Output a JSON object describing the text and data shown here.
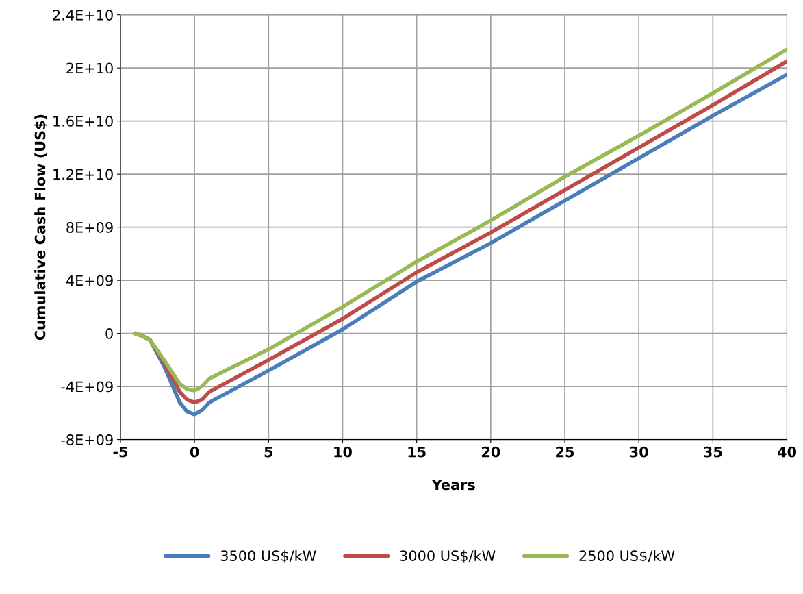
{
  "chart_data": {
    "type": "line",
    "xlabel": "Years",
    "ylabel": "Cumulative Cash Flow (US$)",
    "x": [
      -4,
      -3.5,
      -3,
      -2,
      -1,
      -0.5,
      0,
      0.5,
      1,
      5,
      10,
      15,
      20,
      25,
      30,
      35,
      40
    ],
    "series": [
      {
        "name": "3500 US$/kW",
        "color": "#4a7ebb",
        "values": [
          0,
          -200000000.0,
          -500000000.0,
          -2600000000.0,
          -5200000000.0,
          -5900000000.0,
          -6100000000.0,
          -5800000000.0,
          -5200000000.0,
          -2800000000.0,
          300000000.0,
          3900000000.0,
          6800000000.0,
          10000000000.0,
          13200000000.0,
          16400000000.0,
          19500000000.0
        ]
      },
      {
        "name": "3000 US$/kW",
        "color": "#be4b48",
        "values": [
          0,
          -200000000.0,
          -500000000.0,
          -2300000000.0,
          -4400000000.0,
          -5000000000.0,
          -5200000000.0,
          -5000000000.0,
          -4400000000.0,
          -2000000000.0,
          1100000000.0,
          4600000000.0,
          7600000000.0,
          10800000000.0,
          14000000000.0,
          17200000000.0,
          20500000000.0
        ]
      },
      {
        "name": "2500 US$/kW",
        "color": "#98b954",
        "values": [
          0,
          -200000000.0,
          -500000000.0,
          -2100000000.0,
          -3800000000.0,
          -4200000000.0,
          -4300000000.0,
          -4000000000.0,
          -3400000000.0,
          -1200000000.0,
          2000000000.0,
          5400000000.0,
          8500000000.0,
          11800000000.0,
          14900000000.0,
          18100000000.0,
          21400000000.0
        ]
      }
    ],
    "xlim": [
      -5,
      40
    ],
    "xticks": [
      -5,
      0,
      5,
      10,
      15,
      20,
      25,
      30,
      35,
      40
    ],
    "ylim": [
      -8000000000.0,
      24000000000.0
    ],
    "yticks": [
      {
        "value": -8000000000.0,
        "label": "-8E+09"
      },
      {
        "value": -4000000000.0,
        "label": "-4E+09"
      },
      {
        "value": 0,
        "label": "0"
      },
      {
        "value": 4000000000.0,
        "label": "4E+09"
      },
      {
        "value": 8000000000.0,
        "label": "8E+09"
      },
      {
        "value": 12000000000.0,
        "label": "1.2E+10"
      },
      {
        "value": 16000000000.0,
        "label": "1.6E+10"
      },
      {
        "value": 20000000000.0,
        "label": "2E+10"
      },
      {
        "value": 24000000000.0,
        "label": "2.4E+10"
      }
    ],
    "grid": true,
    "legend": "bottom",
    "marker": "none",
    "line_style": "solid"
  }
}
